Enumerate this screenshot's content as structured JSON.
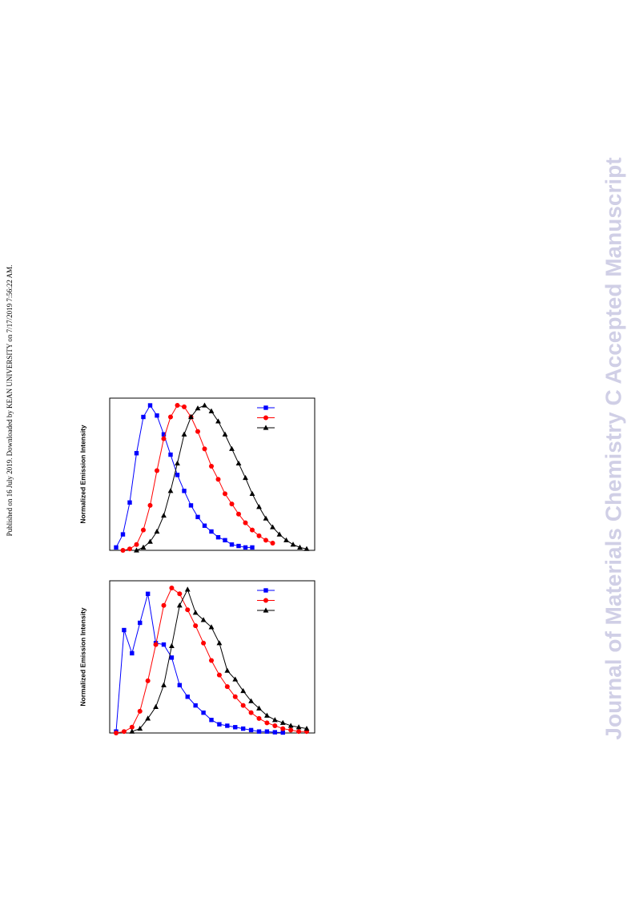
{
  "side_note": "Published on 16 July 2019. Downloaded by KEAN UNIVERSITY on 7/17/2019 7:56:22 AM.",
  "watermark": "Journal of Materials Chemistry C Accepted Manuscript",
  "chart_data": [
    {
      "type": "line",
      "ylabel": "Normalized Emission Intensity",
      "ylim": [
        0,
        1.05
      ],
      "categories": [
        null,
        null,
        null,
        null,
        null,
        null,
        null,
        null,
        null,
        null,
        null,
        null,
        null,
        null,
        null,
        null,
        null,
        null,
        null,
        null,
        null,
        null,
        null,
        null,
        null,
        null,
        null,
        null,
        null
      ],
      "series": [
        {
          "color": "#0000ff",
          "marker": "square",
          "values": [
            0.02,
            0.11,
            0.33,
            0.67,
            0.92,
            1.0,
            0.93,
            0.8,
            0.66,
            0.52,
            0.41,
            0.31,
            0.23,
            0.17,
            0.13,
            0.09,
            0.07,
            0.04,
            0.03,
            0.02,
            0.02,
            null,
            null,
            null,
            null,
            null,
            null,
            null,
            null
          ]
        },
        {
          "color": "#ff0000",
          "marker": "circle",
          "values": [
            null,
            0,
            0.01,
            0.04,
            0.14,
            0.31,
            0.55,
            0.77,
            0.92,
            1.0,
            0.99,
            0.92,
            0.82,
            0.7,
            0.58,
            0.49,
            0.39,
            0.32,
            0.25,
            0.19,
            0.14,
            0.1,
            0.07,
            0.05,
            null,
            null,
            null,
            null,
            null
          ]
        },
        {
          "color": "#000000",
          "marker": "triangle",
          "values": [
            null,
            null,
            null,
            0,
            0.02,
            0.06,
            0.13,
            0.24,
            0.41,
            0.6,
            0.8,
            0.92,
            0.98,
            1.0,
            0.96,
            0.89,
            0.8,
            0.7,
            0.6,
            0.5,
            0.39,
            0.3,
            0.22,
            0.16,
            0.11,
            0.07,
            0.04,
            0.02,
            0.01
          ]
        }
      ]
    },
    {
      "type": "line",
      "ylabel": "Normalized Emission Intensity",
      "ylim": [
        0,
        1.05
      ],
      "categories": [
        null,
        null,
        null,
        null,
        null,
        null,
        null,
        null,
        null,
        null,
        null,
        null,
        null,
        null,
        null,
        null,
        null,
        null,
        null,
        null,
        null,
        null,
        null,
        null,
        null
      ],
      "series": [
        {
          "color": "#0000ff",
          "marker": "square",
          "values": [
            0.01,
            0.71,
            0.55,
            0.76,
            0.96,
            0.62,
            0.61,
            0.52,
            0.33,
            0.25,
            0.19,
            0.14,
            0.09,
            0.06,
            0.05,
            0.04,
            0.03,
            0.02,
            0.01,
            0.01,
            0.005,
            0.003,
            null,
            null,
            null
          ]
        },
        {
          "color": "#ff0000",
          "marker": "circle",
          "values": [
            0,
            0.01,
            0.04,
            0.15,
            0.36,
            0.61,
            0.88,
            1.0,
            0.96,
            0.85,
            0.74,
            0.62,
            0.5,
            0.4,
            0.32,
            0.25,
            0.19,
            0.14,
            0.1,
            0.07,
            0.05,
            0.03,
            0.02,
            0.01,
            0.01
          ]
        },
        {
          "color": "#000000",
          "marker": "triangle",
          "values": [
            null,
            null,
            0.01,
            0.03,
            0.1,
            0.18,
            0.33,
            0.6,
            0.88,
            0.99,
            0.83,
            0.78,
            0.73,
            0.62,
            0.43,
            0.37,
            0.29,
            0.22,
            0.17,
            0.12,
            0.09,
            0.07,
            0.05,
            0.04,
            0.03
          ]
        }
      ]
    }
  ]
}
